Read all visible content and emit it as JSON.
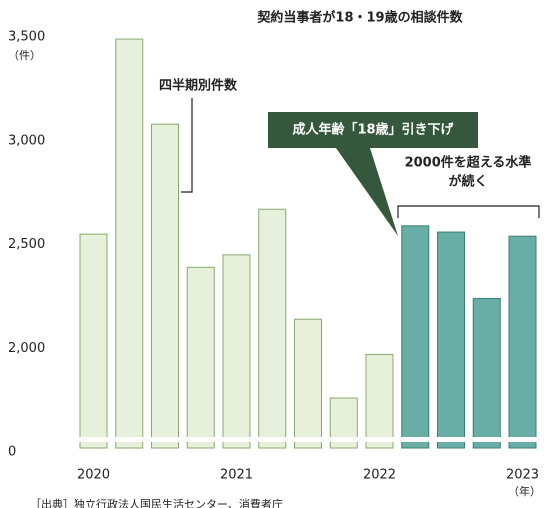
{
  "chart_data": {
    "type": "bar",
    "title": "契約当事者が18・19歳の相談件数",
    "y_unit": "（件）",
    "x_unit": "（年）",
    "categories": [
      "2020",
      null,
      null,
      null,
      "2021",
      null,
      null,
      null,
      "2022",
      null,
      null,
      null,
      "2023"
    ],
    "values": [
      2550,
      3490,
      3080,
      2390,
      2450,
      2670,
      2140,
      1760,
      1970,
      2590,
      2560,
      2240,
      2540
    ],
    "colors": [
      "#e6f0da",
      "#e6f0da",
      "#e6f0da",
      "#e6f0da",
      "#e6f0da",
      "#e6f0da",
      "#e6f0da",
      "#e6f0da",
      "#e6f0da",
      "#68ada6",
      "#68ada6",
      "#68ada6",
      "#68ada6"
    ],
    "ylim": [
      0,
      3500
    ],
    "axis_break": [
      0,
      1500
    ],
    "yticks": [
      0,
      {
        "value": 2000,
        "label": "2,000"
      },
      {
        "value": 2500,
        "label": "2,500"
      },
      {
        "value": 3000,
        "label": "3,000"
      },
      {
        "value": 3500,
        "label": "3,500"
      }
    ],
    "annotations": {
      "quarterly": "四半期別件数",
      "callout": "成人年齢「18歳」引き下げ",
      "level_line1": "2000件を超える水準",
      "level_line2": "が続く"
    },
    "source": "［出典］独立行政法人国民生活センター、消費者庁"
  }
}
